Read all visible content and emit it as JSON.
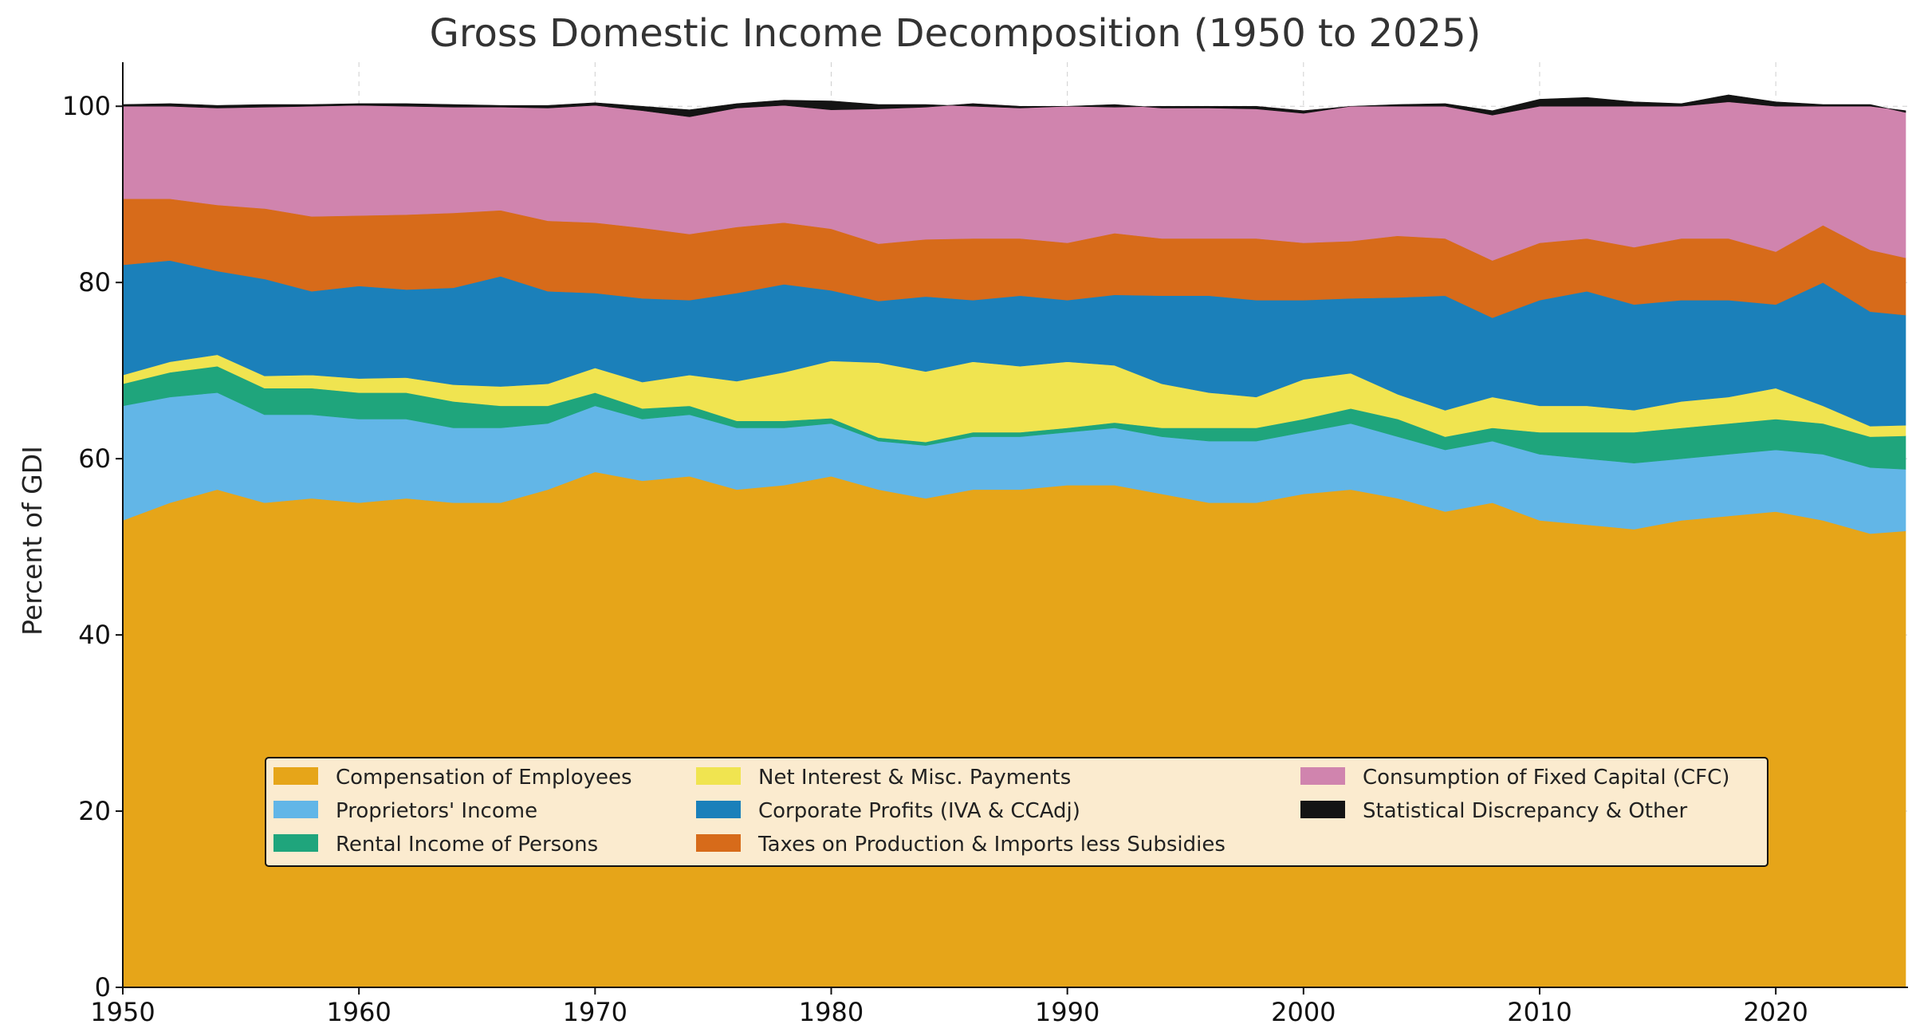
{
  "chart_data": {
    "type": "area",
    "stacked": true,
    "title": "Gross Domestic Income Decomposition (1950 to 2025)",
    "xlabel": "",
    "ylabel": "Percent of GDI",
    "xlim": [
      1950,
      2025.6
    ],
    "ylim": [
      0,
      105
    ],
    "xticks": [
      1950,
      1960,
      1970,
      1980,
      1990,
      2000,
      2010,
      2020
    ],
    "yticks": [
      0,
      20,
      40,
      60,
      80,
      100
    ],
    "grid": true,
    "legend_position": "lower-center",
    "x": [
      1950,
      1952,
      1954,
      1956,
      1958,
      1960,
      1962,
      1964,
      1966,
      1968,
      1970,
      1972,
      1974,
      1976,
      1978,
      1980,
      1982,
      1984,
      1986,
      1988,
      1990,
      1992,
      1994,
      1996,
      1998,
      2000,
      2002,
      2004,
      2006,
      2008,
      2010,
      2012,
      2014,
      2016,
      2018,
      2020,
      2022,
      2024,
      2025.5
    ],
    "series": [
      {
        "name": "Compensation of Employees",
        "color": "#E6A519",
        "values": [
          53.0,
          55.0,
          56.5,
          55.0,
          55.5,
          55.0,
          55.5,
          55.0,
          55.0,
          56.5,
          58.5,
          57.5,
          58.0,
          56.5,
          57.0,
          58.0,
          56.5,
          55.5,
          56.5,
          56.5,
          57.0,
          57.0,
          56.0,
          55.0,
          55.0,
          56.0,
          56.5,
          55.5,
          54.0,
          55.0,
          53.0,
          52.5,
          52.0,
          53.0,
          53.5,
          54.0,
          53.0,
          51.5,
          51.8
        ]
      },
      {
        "name": "Proprietors' Income",
        "color": "#62B6E7",
        "values": [
          13.0,
          12.0,
          11.0,
          10.0,
          9.5,
          9.5,
          9.0,
          8.5,
          8.5,
          7.5,
          7.5,
          7.0,
          7.0,
          7.0,
          6.5,
          6.0,
          5.5,
          6.0,
          6.0,
          6.0,
          6.0,
          6.5,
          6.5,
          7.0,
          7.0,
          7.0,
          7.5,
          7.0,
          7.0,
          7.0,
          7.5,
          7.5,
          7.5,
          7.0,
          7.0,
          7.0,
          7.5,
          7.5,
          7.0
        ]
      },
      {
        "name": "Rental Income of Persons",
        "color": "#1FA57C",
        "values": [
          2.5,
          2.8,
          3.0,
          3.0,
          3.0,
          3.0,
          3.0,
          3.0,
          2.5,
          2.0,
          1.5,
          1.2,
          1.0,
          0.8,
          0.8,
          0.6,
          0.4,
          0.4,
          0.5,
          0.5,
          0.5,
          0.6,
          1.0,
          1.5,
          1.5,
          1.5,
          1.7,
          2.0,
          1.5,
          1.5,
          2.5,
          3.0,
          3.5,
          3.5,
          3.5,
          3.5,
          3.5,
          3.5,
          3.8
        ]
      },
      {
        "name": "Net Interest & Misc. Payments",
        "color": "#F0E450",
        "values": [
          1.0,
          1.2,
          1.3,
          1.4,
          1.5,
          1.6,
          1.7,
          1.9,
          2.2,
          2.5,
          2.8,
          3.0,
          3.5,
          4.5,
          5.5,
          6.5,
          8.5,
          8.0,
          8.0,
          7.5,
          7.5,
          6.5,
          5.0,
          4.0,
          3.5,
          4.5,
          4.0,
          2.8,
          3.0,
          3.5,
          3.0,
          3.0,
          2.5,
          3.0,
          3.0,
          3.5,
          2.0,
          1.2,
          1.2
        ]
      },
      {
        "name": "Corporate Profits (IVA & CCAdj)",
        "color": "#1B80BA",
        "values": [
          12.5,
          11.5,
          9.5,
          11.0,
          9.5,
          10.5,
          10.0,
          11.0,
          12.5,
          10.5,
          8.5,
          9.5,
          8.5,
          10.0,
          10.0,
          8.0,
          7.0,
          8.5,
          7.0,
          8.0,
          7.0,
          8.0,
          10.0,
          11.0,
          11.0,
          9.0,
          8.5,
          11.0,
          13.0,
          9.0,
          12.0,
          13.0,
          12.0,
          11.5,
          11.0,
          9.5,
          14.0,
          13.0,
          12.5
        ]
      },
      {
        "name": "Taxes on Production & Imports less Subsidies",
        "color": "#D76B1A",
        "values": [
          7.5,
          7.0,
          7.5,
          8.0,
          8.5,
          8.0,
          8.5,
          8.5,
          7.5,
          8.0,
          8.0,
          8.0,
          7.5,
          7.5,
          7.0,
          7.0,
          6.5,
          6.5,
          7.0,
          6.5,
          6.5,
          7.0,
          6.5,
          6.5,
          7.0,
          6.5,
          6.5,
          7.0,
          6.5,
          6.5,
          6.5,
          6.0,
          6.5,
          7.0,
          7.0,
          6.0,
          6.5,
          7.0,
          6.5
        ]
      },
      {
        "name": "Consumption of Fixed Capital (CFC)",
        "color": "#D084AE",
        "values": [
          10.5,
          10.5,
          11.0,
          11.5,
          12.5,
          12.5,
          12.3,
          12.0,
          11.7,
          12.8,
          13.3,
          13.3,
          13.3,
          13.5,
          13.3,
          13.5,
          15.3,
          15.0,
          15.3,
          15.0,
          15.5,
          14.3,
          15.0,
          15.0,
          15.0,
          15.0,
          15.3,
          14.7,
          15.0,
          16.5,
          15.5,
          15.0,
          16.0,
          15.0,
          15.5,
          16.5,
          13.5,
          16.3,
          16.7
        ]
      },
      {
        "name": "Statistical Discrepancy & Other",
        "color": "#141414",
        "values": [
          0.2,
          0.3,
          0.3,
          0.3,
          0.2,
          0.2,
          0.3,
          0.3,
          0.2,
          0.3,
          0.3,
          0.5,
          0.8,
          0.5,
          0.6,
          1.0,
          0.5,
          0.3,
          -0.3,
          -0.2,
          0.0,
          0.3,
          -0.2,
          -0.2,
          -0.3,
          -0.3,
          0.0,
          0.2,
          0.3,
          0.5,
          0.8,
          1.0,
          0.5,
          0.3,
          0.8,
          0.5,
          0.2,
          0.2,
          -0.2
        ]
      }
    ]
  }
}
